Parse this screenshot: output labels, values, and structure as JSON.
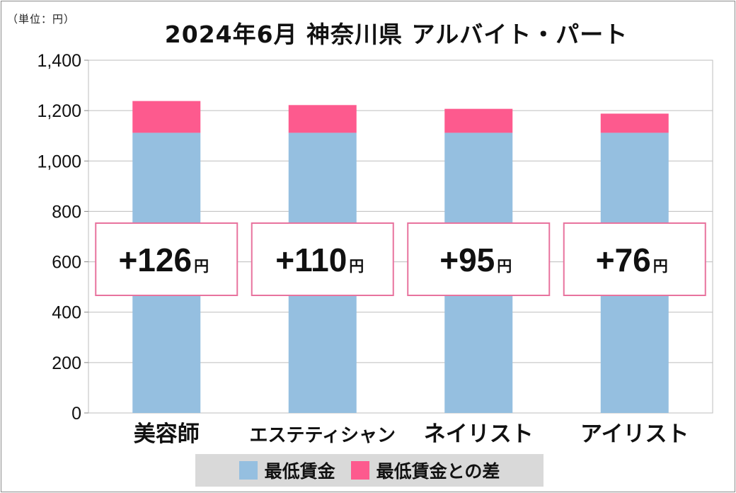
{
  "unit_label": "（単位：円）",
  "title": "2024年6月 神奈川県 アルバイト・パート",
  "colors": {
    "base": "#95bfe0",
    "diff": "#fd5a8e",
    "box_border": "#e8739e",
    "grid": "#bdbdbd"
  },
  "chart_data": {
    "type": "bar",
    "stacked": true,
    "title": "2024年6月 神奈川県 アルバイト・パート",
    "categories": [
      "美容師",
      "エステティシャン",
      "ネイリスト",
      "アイリスト"
    ],
    "series": [
      {
        "name": "最低賃金",
        "values": [
          1112,
          1112,
          1112,
          1112
        ]
      },
      {
        "name": "最低賃金との差",
        "values": [
          126,
          110,
          95,
          76
        ]
      }
    ],
    "annotations": [
      {
        "main": "+126",
        "unit": "円"
      },
      {
        "main": "+110",
        "unit": "円"
      },
      {
        "main": "+95",
        "unit": "円"
      },
      {
        "main": "+76",
        "unit": "円"
      }
    ],
    "yticks": [
      "0",
      "200",
      "400",
      "600",
      "800",
      "1,000",
      "1,200",
      "1,400"
    ],
    "ylim": [
      0,
      1400
    ],
    "grid": true,
    "legend_position": "bottom"
  }
}
